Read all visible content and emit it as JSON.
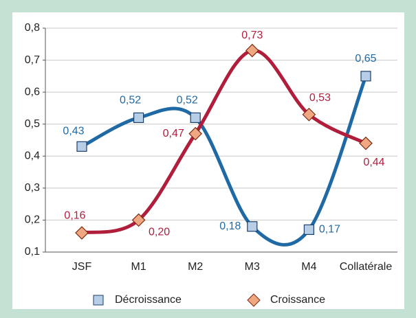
{
  "chart_data": {
    "type": "line",
    "categories": [
      "JSF",
      "M1",
      "M2",
      "M3",
      "M4",
      "Collatérale"
    ],
    "series": [
      {
        "name": "Décroissance",
        "color": "#1f6aa5",
        "marker": "square",
        "values": [
          0.43,
          0.52,
          0.52,
          0.18,
          0.17,
          0.65
        ],
        "value_labels": [
          "0,43",
          "0,52",
          "0,52",
          "0,18",
          "0,17",
          "0,65"
        ]
      },
      {
        "name": "Croissance",
        "color": "#b01e3c",
        "marker": "diamond",
        "values": [
          0.16,
          0.2,
          0.47,
          0.73,
          0.53,
          0.44
        ],
        "value_labels": [
          "0,16",
          "0,20",
          "0,47",
          "0,73",
          "0,53",
          "0,44"
        ]
      }
    ],
    "ylim": [
      0.1,
      0.8
    ],
    "yticks": [
      {
        "value": 0.1,
        "label": "0,1"
      },
      {
        "value": 0.2,
        "label": "0,2"
      },
      {
        "value": 0.3,
        "label": "0,3"
      },
      {
        "value": 0.4,
        "label": "0,4"
      },
      {
        "value": 0.5,
        "label": "0,5"
      },
      {
        "value": 0.6,
        "label": "0,6"
      },
      {
        "value": 0.7,
        "label": "0,7"
      },
      {
        "value": 0.8,
        "label": "0,8"
      }
    ],
    "grid": true,
    "smooth": true,
    "legend": "bottom"
  }
}
